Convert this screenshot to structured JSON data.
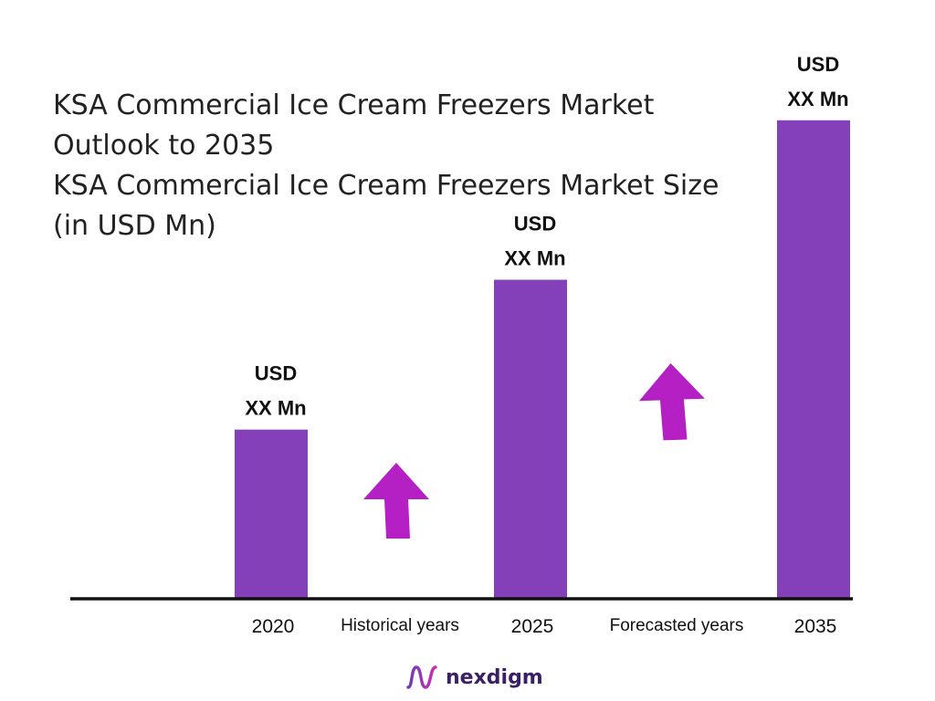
{
  "chart_data": {
    "type": "bar",
    "title": "KSA Commercial Ice Cream Freezers Market Outlook to 2035",
    "subtitle": "KSA Commercial Ice Cream Freezers Market Size (in USD Mn)",
    "categories": [
      "2020",
      "2025",
      "2035"
    ],
    "values": [
      3.5,
      6.6,
      9.9
    ],
    "data_labels": [
      {
        "line1": "USD",
        "line2": "XX Mn"
      },
      {
        "line1": "USD",
        "line2": "XX Mn"
      },
      {
        "line1": "USD",
        "line2": "XX Mn"
      }
    ],
    "period_labels": [
      "Historical years",
      "Forecasted years"
    ],
    "ylim": [
      0,
      10.5
    ],
    "grid": false,
    "legend": "none",
    "bar_color": "#8440b8",
    "arrow_color": "#b520c4",
    "axis_color": "#111111"
  },
  "brand": {
    "name": "nexdigm",
    "icon": "nexdigm-logo-icon",
    "color": "#3b1f66"
  }
}
